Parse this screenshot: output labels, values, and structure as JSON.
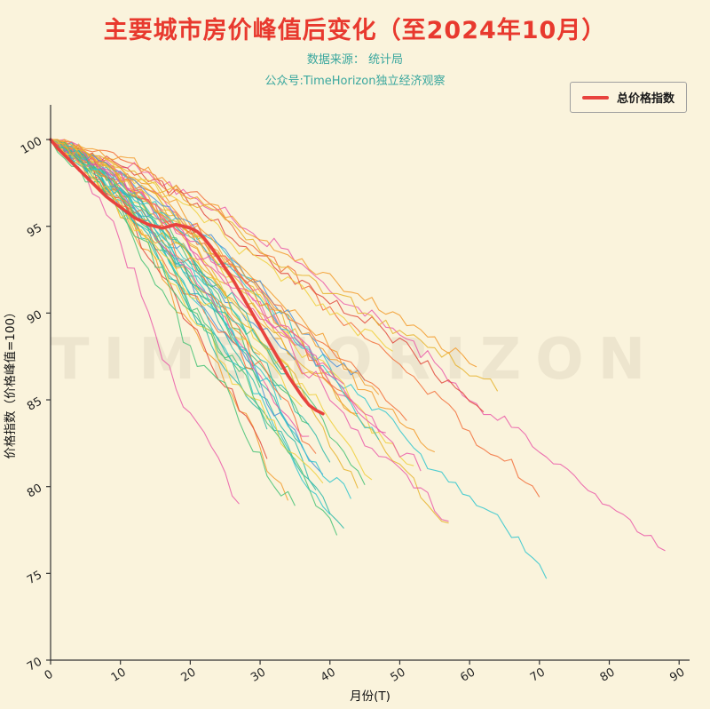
{
  "page": {
    "title": "主要城市房价峰值后变化（至2024年10月）",
    "subtitle1": "数据来源： 统计局",
    "subtitle2": "公众号:TimeHorizon独立经济观察",
    "watermark": "TIMEHORIZON",
    "colors": {
      "background": "#faf3dc",
      "title": "#e8392e",
      "subtitle": "#3aa79e",
      "axis": "#333333",
      "highlight": "#e8433e"
    }
  },
  "chart_data": {
    "type": "line",
    "title": "主要城市房价峰值后变化（至2024年10月）",
    "xlabel": "月份(T)",
    "ylabel": "价格指数（价格峰值=100）",
    "xlim": [
      0,
      90
    ],
    "ylim": [
      70,
      100
    ],
    "xticks": [
      0,
      10,
      20,
      30,
      40,
      50,
      60,
      70,
      80,
      90
    ],
    "yticks": [
      70,
      75,
      80,
      85,
      90,
      95,
      100
    ],
    "grid": false,
    "legend": {
      "position": "top-right",
      "entries": [
        {
          "label": "总价格指数",
          "color": "#e8433e"
        }
      ]
    },
    "main_series": {
      "name": "总价格指数",
      "color": "#e8433e",
      "linewidth": 3.6,
      "x": [
        0,
        1,
        2,
        3,
        4,
        5,
        6,
        7,
        8,
        9,
        10,
        11,
        12,
        13,
        14,
        15,
        16,
        17,
        18,
        19,
        20,
        21,
        22,
        23,
        24,
        25,
        26,
        27,
        28,
        29,
        30,
        31,
        32,
        33,
        34,
        35,
        36,
        37,
        38,
        39
      ],
      "values": [
        100.0,
        99.5,
        99.1,
        98.7,
        98.3,
        97.9,
        97.5,
        97.1,
        96.7,
        96.4,
        96.1,
        95.8,
        95.5,
        95.3,
        95.1,
        95.0,
        94.9,
        95.0,
        95.1,
        95.0,
        94.9,
        94.7,
        94.3,
        93.8,
        93.2,
        92.6,
        92.0,
        91.3,
        90.6,
        89.9,
        89.2,
        88.5,
        87.8,
        87.1,
        86.4,
        85.8,
        85.2,
        84.7,
        84.4,
        84.2
      ]
    },
    "background_series_note": "unlabeled city lines: start=100, len=months after peak, end=final index value",
    "background_series": [
      {
        "color": "#f29b2d",
        "len": 34,
        "end": 79.2,
        "seed": 1
      },
      {
        "color": "#2bb8a8",
        "len": 42,
        "end": 77.6,
        "seed": 2
      },
      {
        "color": "#ea5aa8",
        "len": 88,
        "end": 76.3,
        "seed": 3
      },
      {
        "color": "#30c5ce",
        "len": 71,
        "end": 74.7,
        "seed": 4
      },
      {
        "color": "#e6b32e",
        "len": 57,
        "end": 77.9,
        "seed": 5
      },
      {
        "color": "#f2703c",
        "len": 70,
        "end": 79.4,
        "seed": 6
      },
      {
        "color": "#46c276",
        "len": 45,
        "end": 80.1,
        "seed": 7
      },
      {
        "color": "#4a90d9",
        "len": 39,
        "end": 80.7,
        "seed": 8
      },
      {
        "color": "#e0483c",
        "len": 62,
        "end": 84.3,
        "seed": 9
      },
      {
        "color": "#f0cf3c",
        "len": 52,
        "end": 81.2,
        "seed": 10
      },
      {
        "color": "#2bb8a8",
        "len": 36,
        "end": 82.4,
        "seed": 11
      },
      {
        "color": "#ea5aa8",
        "len": 48,
        "end": 83.1,
        "seed": 12
      },
      {
        "color": "#f29b2d",
        "len": 44,
        "end": 84.2,
        "seed": 13
      },
      {
        "color": "#30c5ce",
        "len": 33,
        "end": 85.0,
        "seed": 14
      },
      {
        "color": "#46c276",
        "len": 30,
        "end": 85.7,
        "seed": 15
      },
      {
        "color": "#e6b32e",
        "len": 41,
        "end": 86.2,
        "seed": 16
      },
      {
        "color": "#f2703c",
        "len": 29,
        "end": 86.8,
        "seed": 17
      },
      {
        "color": "#4a90d9",
        "len": 35,
        "end": 87.3,
        "seed": 18
      },
      {
        "color": "#ea5aa8",
        "len": 27,
        "end": 79.0,
        "seed": 19
      },
      {
        "color": "#2bb8a8",
        "len": 38,
        "end": 79.8,
        "seed": 20
      },
      {
        "color": "#f0cf3c",
        "len": 46,
        "end": 80.4,
        "seed": 21
      },
      {
        "color": "#e0483c",
        "len": 31,
        "end": 81.6,
        "seed": 22
      },
      {
        "color": "#30c5ce",
        "len": 40,
        "end": 78.4,
        "seed": 23
      },
      {
        "color": "#f29b2d",
        "len": 55,
        "end": 82.0,
        "seed": 24
      },
      {
        "color": "#46c276",
        "len": 37,
        "end": 83.6,
        "seed": 25
      },
      {
        "color": "#e6b32e",
        "len": 64,
        "end": 85.5,
        "seed": 26
      },
      {
        "color": "#ea5aa8",
        "len": 57,
        "end": 78.0,
        "seed": 27
      },
      {
        "color": "#f2703c",
        "len": 43,
        "end": 84.9,
        "seed": 28
      },
      {
        "color": "#2bb8a8",
        "len": 34,
        "end": 86.5,
        "seed": 29
      },
      {
        "color": "#f0cf3c",
        "len": 49,
        "end": 87.8,
        "seed": 30
      },
      {
        "color": "#30c5ce",
        "len": 28,
        "end": 88.9,
        "seed": 31
      },
      {
        "color": "#f29b2d",
        "len": 61,
        "end": 86.9,
        "seed": 32
      },
      {
        "color": "#ea5aa8",
        "len": 53,
        "end": 80.9,
        "seed": 33
      },
      {
        "color": "#46c276",
        "len": 35,
        "end": 78.9,
        "seed": 34
      },
      {
        "color": "#e6b32e",
        "len": 44,
        "end": 79.9,
        "seed": 35
      },
      {
        "color": "#f2703c",
        "len": 38,
        "end": 81.9,
        "seed": 36
      },
      {
        "color": "#2bb8a8",
        "len": 31,
        "end": 83.3,
        "seed": 37
      },
      {
        "color": "#30c5ce",
        "len": 47,
        "end": 82.7,
        "seed": 38
      },
      {
        "color": "#f0cf3c",
        "len": 36,
        "end": 84.6,
        "seed": 39
      },
      {
        "color": "#ea5aa8",
        "len": 42,
        "end": 85.9,
        "seed": 40
      },
      {
        "color": "#f29b2d",
        "len": 30,
        "end": 87.6,
        "seed": 41
      },
      {
        "color": "#46c276",
        "len": 26,
        "end": 88.4,
        "seed": 42
      },
      {
        "color": "#e6b32e",
        "len": 33,
        "end": 89.2,
        "seed": 43
      },
      {
        "color": "#4a90d9",
        "len": 45,
        "end": 86.1,
        "seed": 44
      },
      {
        "color": "#f2703c",
        "len": 51,
        "end": 83.8,
        "seed": 45
      },
      {
        "color": "#2bb8a8",
        "len": 40,
        "end": 81.4,
        "seed": 46
      },
      {
        "color": "#ea5aa8",
        "len": 37,
        "end": 82.9,
        "seed": 47
      },
      {
        "color": "#30c5ce",
        "len": 43,
        "end": 79.3,
        "seed": 48
      },
      {
        "color": "#f0cf3c",
        "len": 39,
        "end": 80.2,
        "seed": 49
      },
      {
        "color": "#f29b2d",
        "len": 47,
        "end": 85.3,
        "seed": 50
      },
      {
        "color": "#46c276",
        "len": 41,
        "end": 77.2,
        "seed": 51
      },
      {
        "color": "#e6b32e",
        "len": 35,
        "end": 88.1,
        "seed": 52
      }
    ]
  }
}
